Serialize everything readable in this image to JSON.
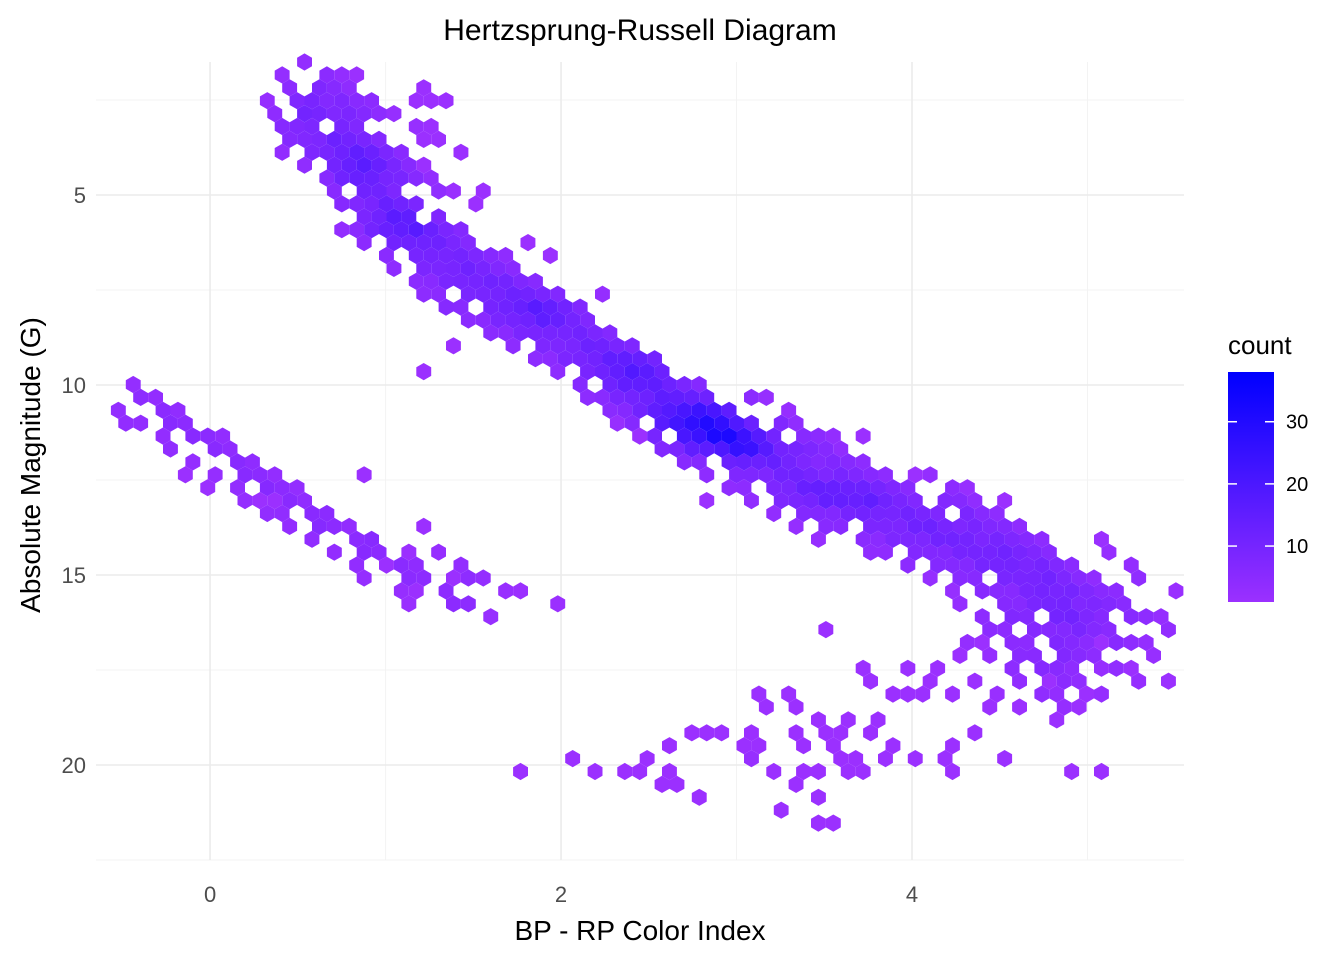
{
  "chart_data": {
    "type": "hexbin",
    "title": "Hertzsprung-Russell Diagram",
    "xlabel": "BP - RP Color Index",
    "ylabel": "Absolute Magnitude (G)",
    "xlim": [
      -0.65,
      5.55
    ],
    "ylim": [
      22.5,
      1.5
    ],
    "y_reversed": true,
    "xticks": [
      0,
      2,
      4
    ],
    "xtick_labels": [
      "0",
      "2",
      "4"
    ],
    "yticks": [
      5,
      10,
      15,
      20
    ],
    "ytick_labels": [
      "5",
      "10",
      "15",
      "20"
    ],
    "grid": true,
    "legend": {
      "title": "count",
      "position": "right",
      "ticks": [
        10,
        20,
        30
      ],
      "tick_labels": [
        "10",
        "20",
        "30"
      ],
      "range": [
        1,
        38
      ],
      "color_low": "#9b30ff",
      "color_high": "#0000ff"
    },
    "ridges": [
      {
        "points": [
          [
            0.6,
            3.0
          ],
          [
            0.8,
            3.9
          ],
          [
            1.0,
            5.3
          ],
          [
            1.3,
            6.5
          ],
          [
            1.6,
            7.5
          ],
          [
            2.0,
            8.5
          ],
          [
            2.3,
            9.5
          ],
          [
            2.6,
            10.5
          ],
          [
            2.9,
            11.3
          ],
          [
            3.2,
            12.0
          ],
          [
            3.5,
            12.7
          ],
          [
            3.9,
            13.4
          ],
          [
            4.3,
            14.1
          ],
          [
            4.7,
            15.0
          ],
          [
            4.9,
            16.0
          ]
        ],
        "width": 0.16,
        "density": 1.4
      },
      {
        "points": [
          [
            -0.4,
            10.6
          ],
          [
            -0.1,
            11.2
          ],
          [
            0.2,
            12.2
          ],
          [
            0.5,
            13.3
          ],
          [
            0.8,
            14.2
          ],
          [
            1.1,
            14.8
          ],
          [
            1.5,
            15.5
          ]
        ],
        "width": 0.1,
        "density": 0.55
      },
      {
        "points": [
          [
            0.6,
            2.7
          ],
          [
            0.8,
            3.5
          ],
          [
            1.0,
            4.5
          ]
        ],
        "width": 0.16,
        "density": 1.2
      },
      {
        "points": [
          [
            4.6,
            15.8
          ],
          [
            4.9,
            16.3
          ],
          [
            5.1,
            16.0
          ],
          [
            4.8,
            16.9
          ]
        ],
        "width": 0.22,
        "density": 0.8
      }
    ],
    "peaks": [
      {
        "x": 2.8,
        "y": 11.0,
        "sx": 0.18,
        "sy": 0.45,
        "amp": 18
      },
      {
        "x": 3.05,
        "y": 11.6,
        "sx": 0.12,
        "sy": 0.3,
        "amp": 12
      },
      {
        "x": 2.9,
        "y": 11.3,
        "sx": 0.05,
        "sy": 0.15,
        "amp": 8
      },
      {
        "x": 2.45,
        "y": 9.6,
        "sx": 0.15,
        "sy": 0.4,
        "amp": 8
      },
      {
        "x": 1.1,
        "y": 5.8,
        "sx": 0.15,
        "sy": 0.4,
        "amp": 6
      },
      {
        "x": 0.85,
        "y": 4.2,
        "sx": 0.12,
        "sy": 0.4,
        "amp": 5
      },
      {
        "x": 3.55,
        "y": 12.9,
        "sx": 0.2,
        "sy": 0.2,
        "amp": 5
      },
      {
        "x": 1.9,
        "y": 8.0,
        "sx": 0.15,
        "sy": 0.3,
        "amp": 5
      }
    ],
    "holes": [
      [
        0.65,
        3.2
      ],
      [
        1.2,
        5.7
      ],
      [
        4.75,
        16.0
      ]
    ],
    "outliers": [
      [
        0.8,
        2.0
      ],
      [
        1.25,
        2.3
      ],
      [
        0.55,
        2.55
      ],
      [
        0.95,
        2.6
      ],
      [
        1.15,
        2.6
      ],
      [
        0.57,
        2.8
      ],
      [
        1.35,
        2.5
      ],
      [
        1.25,
        2.6
      ],
      [
        1.3,
        3.1
      ],
      [
        1.15,
        3.1
      ],
      [
        1.3,
        3.4
      ],
      [
        1.25,
        3.6
      ],
      [
        1.15,
        3.3
      ],
      [
        1.25,
        4.3
      ],
      [
        1.45,
        3.9
      ],
      [
        1.55,
        4.9
      ],
      [
        1.55,
        5.4
      ],
      [
        1.45,
        5.9
      ],
      [
        1.85,
        6.3
      ],
      [
        1.9,
        6.5
      ],
      [
        1.85,
        7.8
      ],
      [
        1.65,
        7.3
      ],
      [
        1.35,
        8.1
      ],
      [
        1.25,
        9.5
      ],
      [
        1.35,
        9.0
      ],
      [
        2.25,
        9.0
      ],
      [
        2.1,
        9.9
      ],
      [
        2.35,
        10.1
      ],
      [
        2.55,
        10.6
      ],
      [
        2.35,
        10.9
      ],
      [
        2.45,
        11.4
      ],
      [
        2.75,
        11.7
      ],
      [
        2.85,
        12.9
      ],
      [
        2.35,
        11.1
      ],
      [
        3.25,
        11.0
      ],
      [
        3.55,
        11.3
      ],
      [
        3.45,
        11.4
      ],
      [
        3.4,
        11.6
      ],
      [
        3.5,
        11.7
      ],
      [
        3.75,
        11.2
      ],
      [
        4.0,
        12.3
      ],
      [
        4.2,
        12.6
      ],
      [
        4.3,
        13.0
      ],
      [
        4.5,
        13.1
      ],
      [
        4.55,
        13.6
      ],
      [
        3.6,
        12.6
      ],
      [
        4.0,
        14.9
      ],
      [
        4.35,
        13.3
      ],
      [
        4.1,
        13.8
      ],
      [
        3.8,
        13.1
      ],
      [
        3.7,
        13.3
      ],
      [
        -0.2,
        11.8
      ],
      [
        -0.1,
        12.5
      ],
      [
        0.0,
        12.6
      ],
      [
        0.3,
        13.2
      ],
      [
        0.4,
        13.0
      ],
      [
        0.7,
        13.5
      ],
      [
        0.9,
        14.0
      ],
      [
        1.0,
        14.7
      ],
      [
        0.95,
        14.0
      ],
      [
        1.15,
        14.5
      ],
      [
        1.35,
        15.0
      ],
      [
        1.2,
        15.3
      ],
      [
        1.4,
        15.6
      ],
      [
        1.5,
        15.9
      ],
      [
        1.75,
        15.5
      ],
      [
        1.95,
        15.8
      ],
      [
        0.85,
        12.5
      ],
      [
        1.25,
        13.6
      ],
      [
        5.45,
        16.3
      ],
      [
        5.1,
        16.9
      ],
      [
        5.05,
        17.3
      ],
      [
        5.25,
        17.5
      ],
      [
        5.1,
        17.4
      ],
      [
        5.5,
        17.7
      ],
      [
        5.25,
        17.8
      ],
      [
        4.95,
        18.5
      ],
      [
        5.0,
        18.3
      ],
      [
        4.85,
        18.7
      ],
      [
        4.6,
        18.6
      ],
      [
        4.45,
        18.6
      ],
      [
        4.6,
        17.3
      ],
      [
        4.75,
        17.8
      ],
      [
        4.35,
        17.8
      ],
      [
        4.2,
        18.3
      ],
      [
        4.05,
        18.0
      ],
      [
        4.15,
        17.4
      ],
      [
        3.55,
        16.5
      ],
      [
        4.3,
        17.1
      ],
      [
        4.4,
        16.9
      ],
      [
        4.0,
        17.5
      ],
      [
        4.1,
        17.7
      ],
      [
        3.9,
        18.0
      ],
      [
        3.95,
        18.2
      ],
      [
        3.8,
        17.7
      ],
      [
        3.7,
        17.6
      ],
      [
        3.65,
        18.9
      ],
      [
        3.8,
        18.8
      ],
      [
        3.85,
        19.4
      ],
      [
        3.6,
        19.1
      ],
      [
        3.5,
        19.0
      ],
      [
        3.45,
        18.9
      ],
      [
        3.75,
        19.0
      ],
      [
        3.15,
        18.3
      ],
      [
        3.3,
        18.3
      ],
      [
        3.15,
        18.6
      ],
      [
        3.3,
        18.6
      ],
      [
        3.05,
        19.3
      ],
      [
        3.05,
        19.6
      ],
      [
        3.15,
        19.4
      ],
      [
        3.3,
        19.1
      ],
      [
        3.35,
        19.6
      ],
      [
        3.55,
        19.5
      ],
      [
        3.6,
        19.7
      ],
      [
        3.7,
        19.8
      ],
      [
        3.85,
        20.0
      ],
      [
        4.0,
        19.9
      ],
      [
        2.75,
        19.1
      ],
      [
        2.85,
        19.3
      ],
      [
        2.95,
        19.1
      ],
      [
        3.1,
        19.7
      ],
      [
        3.05,
        20.0
      ],
      [
        3.25,
        20.2
      ],
      [
        3.35,
        20.2
      ],
      [
        3.45,
        20.3
      ],
      [
        3.6,
        20.3
      ],
      [
        3.7,
        20.3
      ],
      [
        3.3,
        20.4
      ],
      [
        3.5,
        21.0
      ],
      [
        3.45,
        21.4
      ],
      [
        3.55,
        21.6
      ],
      [
        3.25,
        21.2
      ],
      [
        2.6,
        19.5
      ],
      [
        2.5,
        20.0
      ],
      [
        2.35,
        20.3
      ],
      [
        2.45,
        20.1
      ],
      [
        2.55,
        20.5
      ],
      [
        2.8,
        20.8
      ],
      [
        2.65,
        20.3
      ],
      [
        2.7,
        20.4
      ],
      [
        2.05,
        20.0
      ],
      [
        2.2,
        20.2
      ],
      [
        1.75,
        20.2
      ],
      [
        4.25,
        20.2
      ],
      [
        4.55,
        20.0
      ],
      [
        4.9,
        20.2
      ],
      [
        5.1,
        20.2
      ],
      [
        4.4,
        19.1
      ],
      [
        4.25,
        19.5
      ],
      [
        4.15,
        19.7
      ]
    ]
  }
}
